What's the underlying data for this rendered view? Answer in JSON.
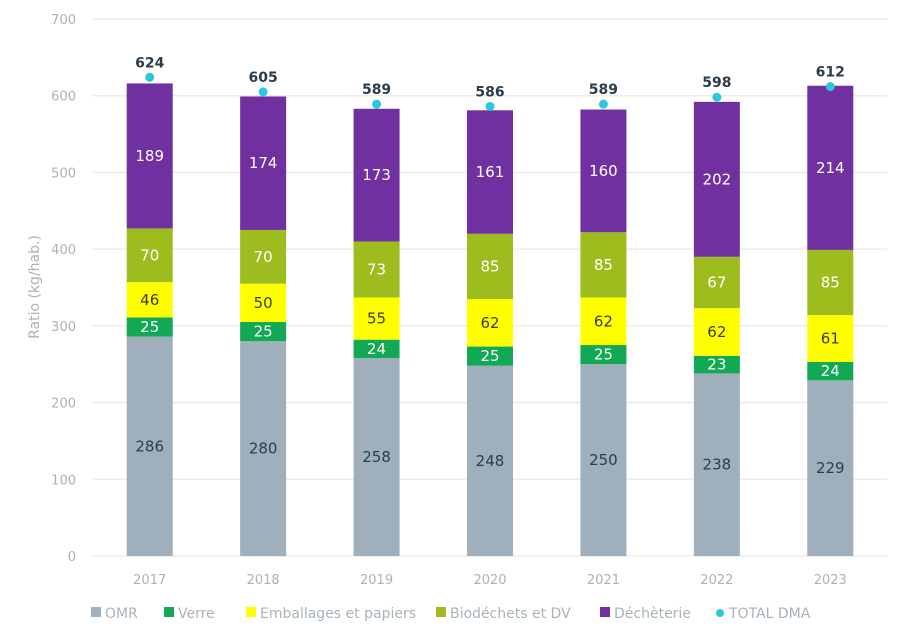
{
  "chart_data": {
    "type": "bar",
    "stacked": true,
    "title": "",
    "xlabel": "",
    "ylabel": "Ratio (kg/hab.)",
    "ylim": [
      0,
      700
    ],
    "yticks": [
      0,
      100,
      200,
      300,
      400,
      500,
      600,
      700
    ],
    "grid": true,
    "legend_position": "bottom",
    "categories": [
      "2017",
      "2018",
      "2019",
      "2020",
      "2021",
      "2022",
      "2023"
    ],
    "series": [
      {
        "name": "OMR",
        "color": "#9fb0bc",
        "label_color": "#2b3d4a",
        "values": [
          286,
          280,
          258,
          248,
          250,
          238,
          229
        ]
      },
      {
        "name": "Verre",
        "color": "#12a955",
        "label_color": "#ffffff",
        "values": [
          25,
          25,
          24,
          25,
          25,
          23,
          24
        ]
      },
      {
        "name": "Emballages et papiers",
        "color": "#ffff00",
        "label_color": "#3a3a2a",
        "values": [
          46,
          50,
          55,
          62,
          62,
          62,
          61
        ]
      },
      {
        "name": "Biodéchets et DV",
        "color": "#9cbd1d",
        "label_color": "#ffffff",
        "values": [
          70,
          70,
          73,
          85,
          85,
          67,
          85
        ]
      },
      {
        "name": "Déchèterie",
        "color": "#7030a0",
        "label_color": "#ffffff",
        "values": [
          189,
          174,
          173,
          161,
          160,
          202,
          214
        ]
      }
    ],
    "total": {
      "name": "TOTAL DMA",
      "type": "scatter",
      "color": "#2bc8dc",
      "values": [
        624,
        605,
        589,
        586,
        589,
        598,
        612
      ]
    }
  }
}
